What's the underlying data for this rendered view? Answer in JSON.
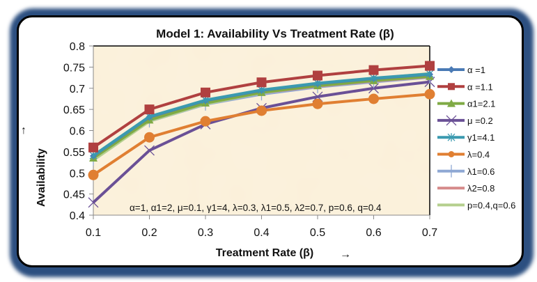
{
  "chart_data": {
    "type": "line",
    "title": "Model 1: Availability Vs Treatment Rate (β)",
    "xlabel": "Treatment Rate (β)",
    "ylabel": "Availability",
    "xlabel_arrow": "→",
    "ylabel_arrow": "↑",
    "x": [
      0.1,
      0.2,
      0.3,
      0.4,
      0.5,
      0.6,
      0.7
    ],
    "x_tick_labels": [
      "0.1",
      "0.2",
      "0.3",
      "0.4",
      "0.5",
      "0.6",
      "0.7"
    ],
    "ylim": [
      0.4,
      0.8
    ],
    "y_tick_labels": [
      "0.4",
      "0.45",
      "0.5",
      "0.55",
      "0.6",
      "0.65",
      "0.7",
      "0.75",
      "0.8"
    ],
    "y_ticks": [
      0.4,
      0.45,
      0.5,
      0.55,
      0.6,
      0.65,
      0.7,
      0.75,
      0.8
    ],
    "grid": false,
    "legend_position": "right",
    "annotation": "α=1, α1=2, μ=0.1, γ1=4, λ=0.3, λ1=0.5, λ2=0.7, p=0.6, q=0.4",
    "plot_background": "#fbf0d9",
    "series": [
      {
        "name": "α =1",
        "color": "#4a7ab5",
        "marker": "diamond",
        "values": [
          0.54,
          0.632,
          0.671,
          0.695,
          0.711,
          0.723,
          0.733
        ]
      },
      {
        "name": "α =1.1",
        "color": "#b04040",
        "marker": "square",
        "values": [
          0.56,
          0.65,
          0.69,
          0.714,
          0.73,
          0.743,
          0.753
        ]
      },
      {
        "name": "α1=2.1",
        "color": "#7faa45",
        "marker": "triangle",
        "values": [
          0.535,
          0.625,
          0.665,
          0.69,
          0.706,
          0.718,
          0.728
        ]
      },
      {
        "name": "μ =0.2",
        "color": "#6a5096",
        "marker": "x",
        "values": [
          0.43,
          0.553,
          0.615,
          0.653,
          0.68,
          0.7,
          0.715
        ]
      },
      {
        "name": "γ1=4.1",
        "color": "#3b9ab0",
        "marker": "star",
        "values": [
          0.541,
          0.633,
          0.672,
          0.696,
          0.712,
          0.724,
          0.734
        ]
      },
      {
        "name": "λ=0.4",
        "color": "#e07f32",
        "marker": "circle",
        "values": [
          0.495,
          0.584,
          0.622,
          0.647,
          0.663,
          0.675,
          0.686
        ]
      },
      {
        "name": "λ1=0.6",
        "color": "#8fa8d4",
        "marker": "plus",
        "values": [
          0.532,
          0.622,
          0.662,
          0.686,
          0.703,
          0.715,
          0.726
        ]
      },
      {
        "name": "λ2=0.8",
        "color": "#d68c8c",
        "marker": "none",
        "values": [
          0.535,
          0.626,
          0.665,
          0.689,
          0.705,
          0.717,
          0.727
        ]
      },
      {
        "name": "p=0.4,q=0.6",
        "color": "#b5cf8e",
        "marker": "none",
        "values": [
          0.531,
          0.623,
          0.664,
          0.69,
          0.708,
          0.722,
          0.734
        ]
      }
    ]
  }
}
